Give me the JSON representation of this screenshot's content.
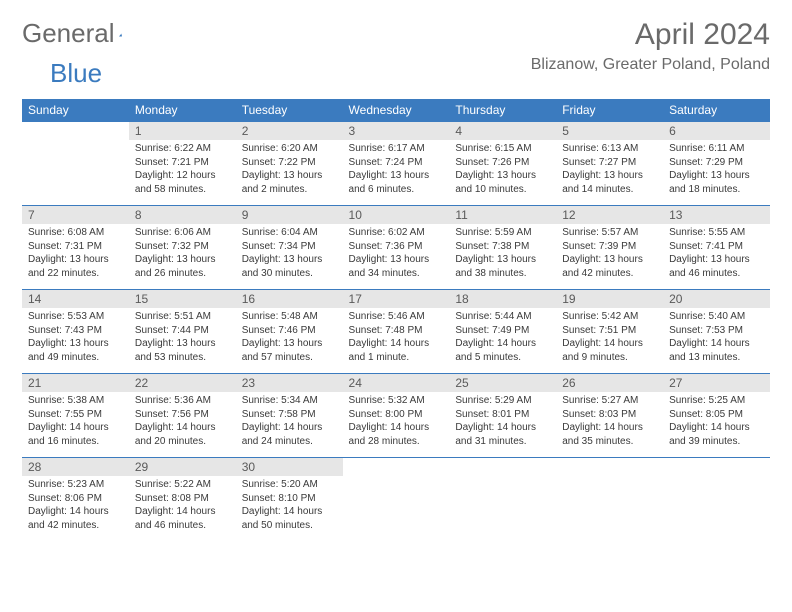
{
  "logo": {
    "word1": "General",
    "word2": "Blue"
  },
  "header": {
    "title": "April 2024",
    "location": "Blizanow, Greater Poland, Poland"
  },
  "daynames": [
    "Sunday",
    "Monday",
    "Tuesday",
    "Wednesday",
    "Thursday",
    "Friday",
    "Saturday"
  ],
  "colors": {
    "header_bg": "#3b7bbf",
    "header_fg": "#ffffff",
    "daynum_bg": "#e6e6e6",
    "border": "#3b7bbf",
    "text": "#3a3a3a",
    "muted": "#6a6a6a"
  },
  "weeks": [
    [
      {
        "n": "",
        "sr": "",
        "ss": "",
        "dl": ""
      },
      {
        "n": "1",
        "sr": "Sunrise: 6:22 AM",
        "ss": "Sunset: 7:21 PM",
        "dl": "Daylight: 12 hours and 58 minutes."
      },
      {
        "n": "2",
        "sr": "Sunrise: 6:20 AM",
        "ss": "Sunset: 7:22 PM",
        "dl": "Daylight: 13 hours and 2 minutes."
      },
      {
        "n": "3",
        "sr": "Sunrise: 6:17 AM",
        "ss": "Sunset: 7:24 PM",
        "dl": "Daylight: 13 hours and 6 minutes."
      },
      {
        "n": "4",
        "sr": "Sunrise: 6:15 AM",
        "ss": "Sunset: 7:26 PM",
        "dl": "Daylight: 13 hours and 10 minutes."
      },
      {
        "n": "5",
        "sr": "Sunrise: 6:13 AM",
        "ss": "Sunset: 7:27 PM",
        "dl": "Daylight: 13 hours and 14 minutes."
      },
      {
        "n": "6",
        "sr": "Sunrise: 6:11 AM",
        "ss": "Sunset: 7:29 PM",
        "dl": "Daylight: 13 hours and 18 minutes."
      }
    ],
    [
      {
        "n": "7",
        "sr": "Sunrise: 6:08 AM",
        "ss": "Sunset: 7:31 PM",
        "dl": "Daylight: 13 hours and 22 minutes."
      },
      {
        "n": "8",
        "sr": "Sunrise: 6:06 AM",
        "ss": "Sunset: 7:32 PM",
        "dl": "Daylight: 13 hours and 26 minutes."
      },
      {
        "n": "9",
        "sr": "Sunrise: 6:04 AM",
        "ss": "Sunset: 7:34 PM",
        "dl": "Daylight: 13 hours and 30 minutes."
      },
      {
        "n": "10",
        "sr": "Sunrise: 6:02 AM",
        "ss": "Sunset: 7:36 PM",
        "dl": "Daylight: 13 hours and 34 minutes."
      },
      {
        "n": "11",
        "sr": "Sunrise: 5:59 AM",
        "ss": "Sunset: 7:38 PM",
        "dl": "Daylight: 13 hours and 38 minutes."
      },
      {
        "n": "12",
        "sr": "Sunrise: 5:57 AM",
        "ss": "Sunset: 7:39 PM",
        "dl": "Daylight: 13 hours and 42 minutes."
      },
      {
        "n": "13",
        "sr": "Sunrise: 5:55 AM",
        "ss": "Sunset: 7:41 PM",
        "dl": "Daylight: 13 hours and 46 minutes."
      }
    ],
    [
      {
        "n": "14",
        "sr": "Sunrise: 5:53 AM",
        "ss": "Sunset: 7:43 PM",
        "dl": "Daylight: 13 hours and 49 minutes."
      },
      {
        "n": "15",
        "sr": "Sunrise: 5:51 AM",
        "ss": "Sunset: 7:44 PM",
        "dl": "Daylight: 13 hours and 53 minutes."
      },
      {
        "n": "16",
        "sr": "Sunrise: 5:48 AM",
        "ss": "Sunset: 7:46 PM",
        "dl": "Daylight: 13 hours and 57 minutes."
      },
      {
        "n": "17",
        "sr": "Sunrise: 5:46 AM",
        "ss": "Sunset: 7:48 PM",
        "dl": "Daylight: 14 hours and 1 minute."
      },
      {
        "n": "18",
        "sr": "Sunrise: 5:44 AM",
        "ss": "Sunset: 7:49 PM",
        "dl": "Daylight: 14 hours and 5 minutes."
      },
      {
        "n": "19",
        "sr": "Sunrise: 5:42 AM",
        "ss": "Sunset: 7:51 PM",
        "dl": "Daylight: 14 hours and 9 minutes."
      },
      {
        "n": "20",
        "sr": "Sunrise: 5:40 AM",
        "ss": "Sunset: 7:53 PM",
        "dl": "Daylight: 14 hours and 13 minutes."
      }
    ],
    [
      {
        "n": "21",
        "sr": "Sunrise: 5:38 AM",
        "ss": "Sunset: 7:55 PM",
        "dl": "Daylight: 14 hours and 16 minutes."
      },
      {
        "n": "22",
        "sr": "Sunrise: 5:36 AM",
        "ss": "Sunset: 7:56 PM",
        "dl": "Daylight: 14 hours and 20 minutes."
      },
      {
        "n": "23",
        "sr": "Sunrise: 5:34 AM",
        "ss": "Sunset: 7:58 PM",
        "dl": "Daylight: 14 hours and 24 minutes."
      },
      {
        "n": "24",
        "sr": "Sunrise: 5:32 AM",
        "ss": "Sunset: 8:00 PM",
        "dl": "Daylight: 14 hours and 28 minutes."
      },
      {
        "n": "25",
        "sr": "Sunrise: 5:29 AM",
        "ss": "Sunset: 8:01 PM",
        "dl": "Daylight: 14 hours and 31 minutes."
      },
      {
        "n": "26",
        "sr": "Sunrise: 5:27 AM",
        "ss": "Sunset: 8:03 PM",
        "dl": "Daylight: 14 hours and 35 minutes."
      },
      {
        "n": "27",
        "sr": "Sunrise: 5:25 AM",
        "ss": "Sunset: 8:05 PM",
        "dl": "Daylight: 14 hours and 39 minutes."
      }
    ],
    [
      {
        "n": "28",
        "sr": "Sunrise: 5:23 AM",
        "ss": "Sunset: 8:06 PM",
        "dl": "Daylight: 14 hours and 42 minutes."
      },
      {
        "n": "29",
        "sr": "Sunrise: 5:22 AM",
        "ss": "Sunset: 8:08 PM",
        "dl": "Daylight: 14 hours and 46 minutes."
      },
      {
        "n": "30",
        "sr": "Sunrise: 5:20 AM",
        "ss": "Sunset: 8:10 PM",
        "dl": "Daylight: 14 hours and 50 minutes."
      },
      {
        "n": "",
        "sr": "",
        "ss": "",
        "dl": ""
      },
      {
        "n": "",
        "sr": "",
        "ss": "",
        "dl": ""
      },
      {
        "n": "",
        "sr": "",
        "ss": "",
        "dl": ""
      },
      {
        "n": "",
        "sr": "",
        "ss": "",
        "dl": ""
      }
    ]
  ]
}
